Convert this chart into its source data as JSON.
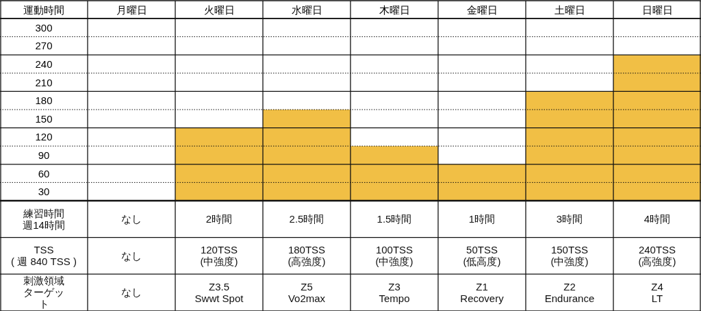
{
  "chart_data": {
    "type": "bar",
    "ylabel": "運動時間",
    "categories": [
      "月曜日",
      "火曜日",
      "水曜日",
      "木曜日",
      "金曜日",
      "土曜日",
      "日曜日"
    ],
    "values": [
      0,
      120,
      150,
      90,
      60,
      180,
      240
    ],
    "color": "#f1bf45",
    "ylim": [
      0,
      300
    ],
    "yticks": [
      300,
      270,
      240,
      210,
      180,
      150,
      120,
      90,
      60,
      30
    ],
    "grid": true,
    "annotations": [
      "練習時間週14時間",
      "なし",
      "2時間",
      "2.5時間",
      "1.5時間",
      "1時間",
      "3時間",
      "4時間",
      "TSS\n( 週 840 TSS )",
      "なし",
      "120TSS\n(中強度)",
      "180TSS\n(高強度)",
      "100TSS\n(中強度)",
      "50TSS\n(低高度)",
      "150TSS\n(中強度)",
      "240TSS\n(高強度)",
      "刺激領域ターゲット",
      "なし",
      "Z3.5\nSwwt Spot",
      "Z5\nVo2max",
      "Z3\nTempo",
      "Z1\nRecovery",
      "Z2\nEndurance",
      "Z4\nLT"
    ]
  }
}
